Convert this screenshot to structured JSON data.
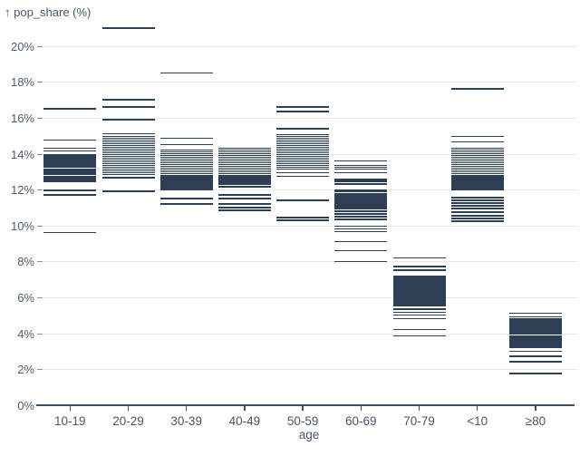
{
  "chart": {
    "y_axis_title": "↑ pop_share (%)",
    "x_axis_title": "age"
  },
  "chart_data": {
    "type": "tick-strip",
    "title": "",
    "xlabel": "age",
    "ylabel": "pop_share (%)",
    "ylim": [
      0,
      21.6
    ],
    "grid": true,
    "legend": false,
    "y_tick_values": [
      0,
      2,
      4,
      6,
      8,
      10,
      12,
      14,
      16,
      18,
      20
    ],
    "y_tick_labels": [
      "0%",
      "2%",
      "4%",
      "6%",
      "8%",
      "10%",
      "12%",
      "14%",
      "16%",
      "18%",
      "20%"
    ],
    "categories": [
      "10-19",
      "20-29",
      "30-39",
      "40-49",
      "50-59",
      "60-69",
      "70-79",
      "<10",
      "≥80"
    ],
    "series": [
      {
        "name": "10-19",
        "values": [
          16.5,
          14.75,
          14.3,
          14.15,
          13.95,
          13.87,
          13.79,
          13.71,
          13.63,
          13.55,
          13.47,
          13.39,
          13.31,
          13.23,
          13.15,
          13.07,
          12.99,
          12.91,
          12.83,
          12.75,
          12.67,
          12.59,
          12.51,
          12.43,
          11.95,
          11.7,
          9.6
        ]
      },
      {
        "name": "20-29",
        "values": [
          21.0,
          17.0,
          16.6,
          15.9,
          15.1,
          14.95,
          14.85,
          14.75,
          14.65,
          14.55,
          14.45,
          14.35,
          14.25,
          14.15,
          14.05,
          13.95,
          13.85,
          13.75,
          13.65,
          13.55,
          13.45,
          13.35,
          13.25,
          13.15,
          13.05,
          12.95,
          12.85,
          12.65,
          11.9
        ]
      },
      {
        "name": "30-39",
        "values": [
          18.5,
          14.85,
          14.5,
          14.2,
          14.1,
          14.0,
          13.9,
          13.8,
          13.7,
          13.6,
          13.5,
          13.4,
          13.3,
          13.2,
          13.1,
          13.0,
          12.9,
          12.8,
          12.7,
          12.6,
          12.5,
          12.4,
          12.3,
          12.2,
          12.1,
          12.0,
          11.5,
          11.2
        ]
      },
      {
        "name": "40-49",
        "values": [
          14.3,
          14.2,
          14.1,
          14.0,
          13.9,
          13.8,
          13.7,
          13.6,
          13.5,
          13.4,
          13.3,
          13.2,
          13.1,
          13.0,
          12.9,
          12.8,
          12.7,
          12.6,
          12.5,
          12.4,
          12.3,
          12.15,
          11.7,
          11.5,
          11.2,
          11.0,
          10.85
        ]
      },
      {
        "name": "50-59",
        "values": [
          16.6,
          16.35,
          15.4,
          15.05,
          14.95,
          14.85,
          14.75,
          14.65,
          14.55,
          14.45,
          14.35,
          14.25,
          14.15,
          14.05,
          13.95,
          13.85,
          13.75,
          13.65,
          13.55,
          13.45,
          13.35,
          13.25,
          13.15,
          12.95,
          12.75,
          11.4,
          10.45,
          10.3
        ]
      },
      {
        "name": "60-69",
        "values": [
          13.6,
          13.35,
          13.25,
          13.15,
          12.95,
          12.55,
          12.45,
          12.3,
          11.95,
          11.87,
          11.79,
          11.71,
          11.63,
          11.55,
          11.47,
          11.39,
          11.31,
          11.23,
          11.15,
          11.07,
          10.99,
          10.91,
          10.8,
          10.65,
          10.5,
          10.35,
          9.95,
          9.8,
          9.65,
          9.1,
          8.6,
          8.0
        ]
      },
      {
        "name": "70-79",
        "values": [
          8.2,
          7.7,
          7.5,
          7.15,
          7.05,
          6.95,
          6.85,
          6.75,
          6.65,
          6.55,
          6.45,
          6.35,
          6.25,
          6.15,
          6.05,
          5.95,
          5.85,
          5.75,
          5.65,
          5.55,
          5.35,
          5.15,
          5.0,
          4.8,
          4.2,
          3.85
        ]
      },
      {
        "name": "<10",
        "values": [
          17.6,
          14.95,
          14.65,
          14.3,
          14.2,
          14.1,
          14.0,
          13.9,
          13.8,
          13.7,
          13.6,
          13.5,
          13.4,
          13.3,
          13.2,
          13.1,
          13.0,
          12.9,
          12.8,
          12.7,
          12.6,
          12.5,
          12.4,
          12.3,
          12.2,
          12.1,
          12.0,
          11.55,
          11.4,
          11.25,
          11.1,
          10.95,
          10.75,
          10.55,
          10.4,
          10.25
        ]
      },
      {
        "name": "≥80",
        "values": [
          5.1,
          4.9,
          4.82,
          4.74,
          4.66,
          4.58,
          4.5,
          4.42,
          4.34,
          4.26,
          4.18,
          4.1,
          4.02,
          3.94,
          3.86,
          3.78,
          3.7,
          3.62,
          3.54,
          3.46,
          3.38,
          3.3,
          3.22,
          3.0,
          2.7,
          2.4,
          1.75
        ]
      }
    ],
    "colors": {
      "tick": "#2d3f55",
      "axis": "#3d4d62",
      "label": "#47566b",
      "gridline": "#e7e9ec",
      "background": "#ffffff"
    }
  }
}
